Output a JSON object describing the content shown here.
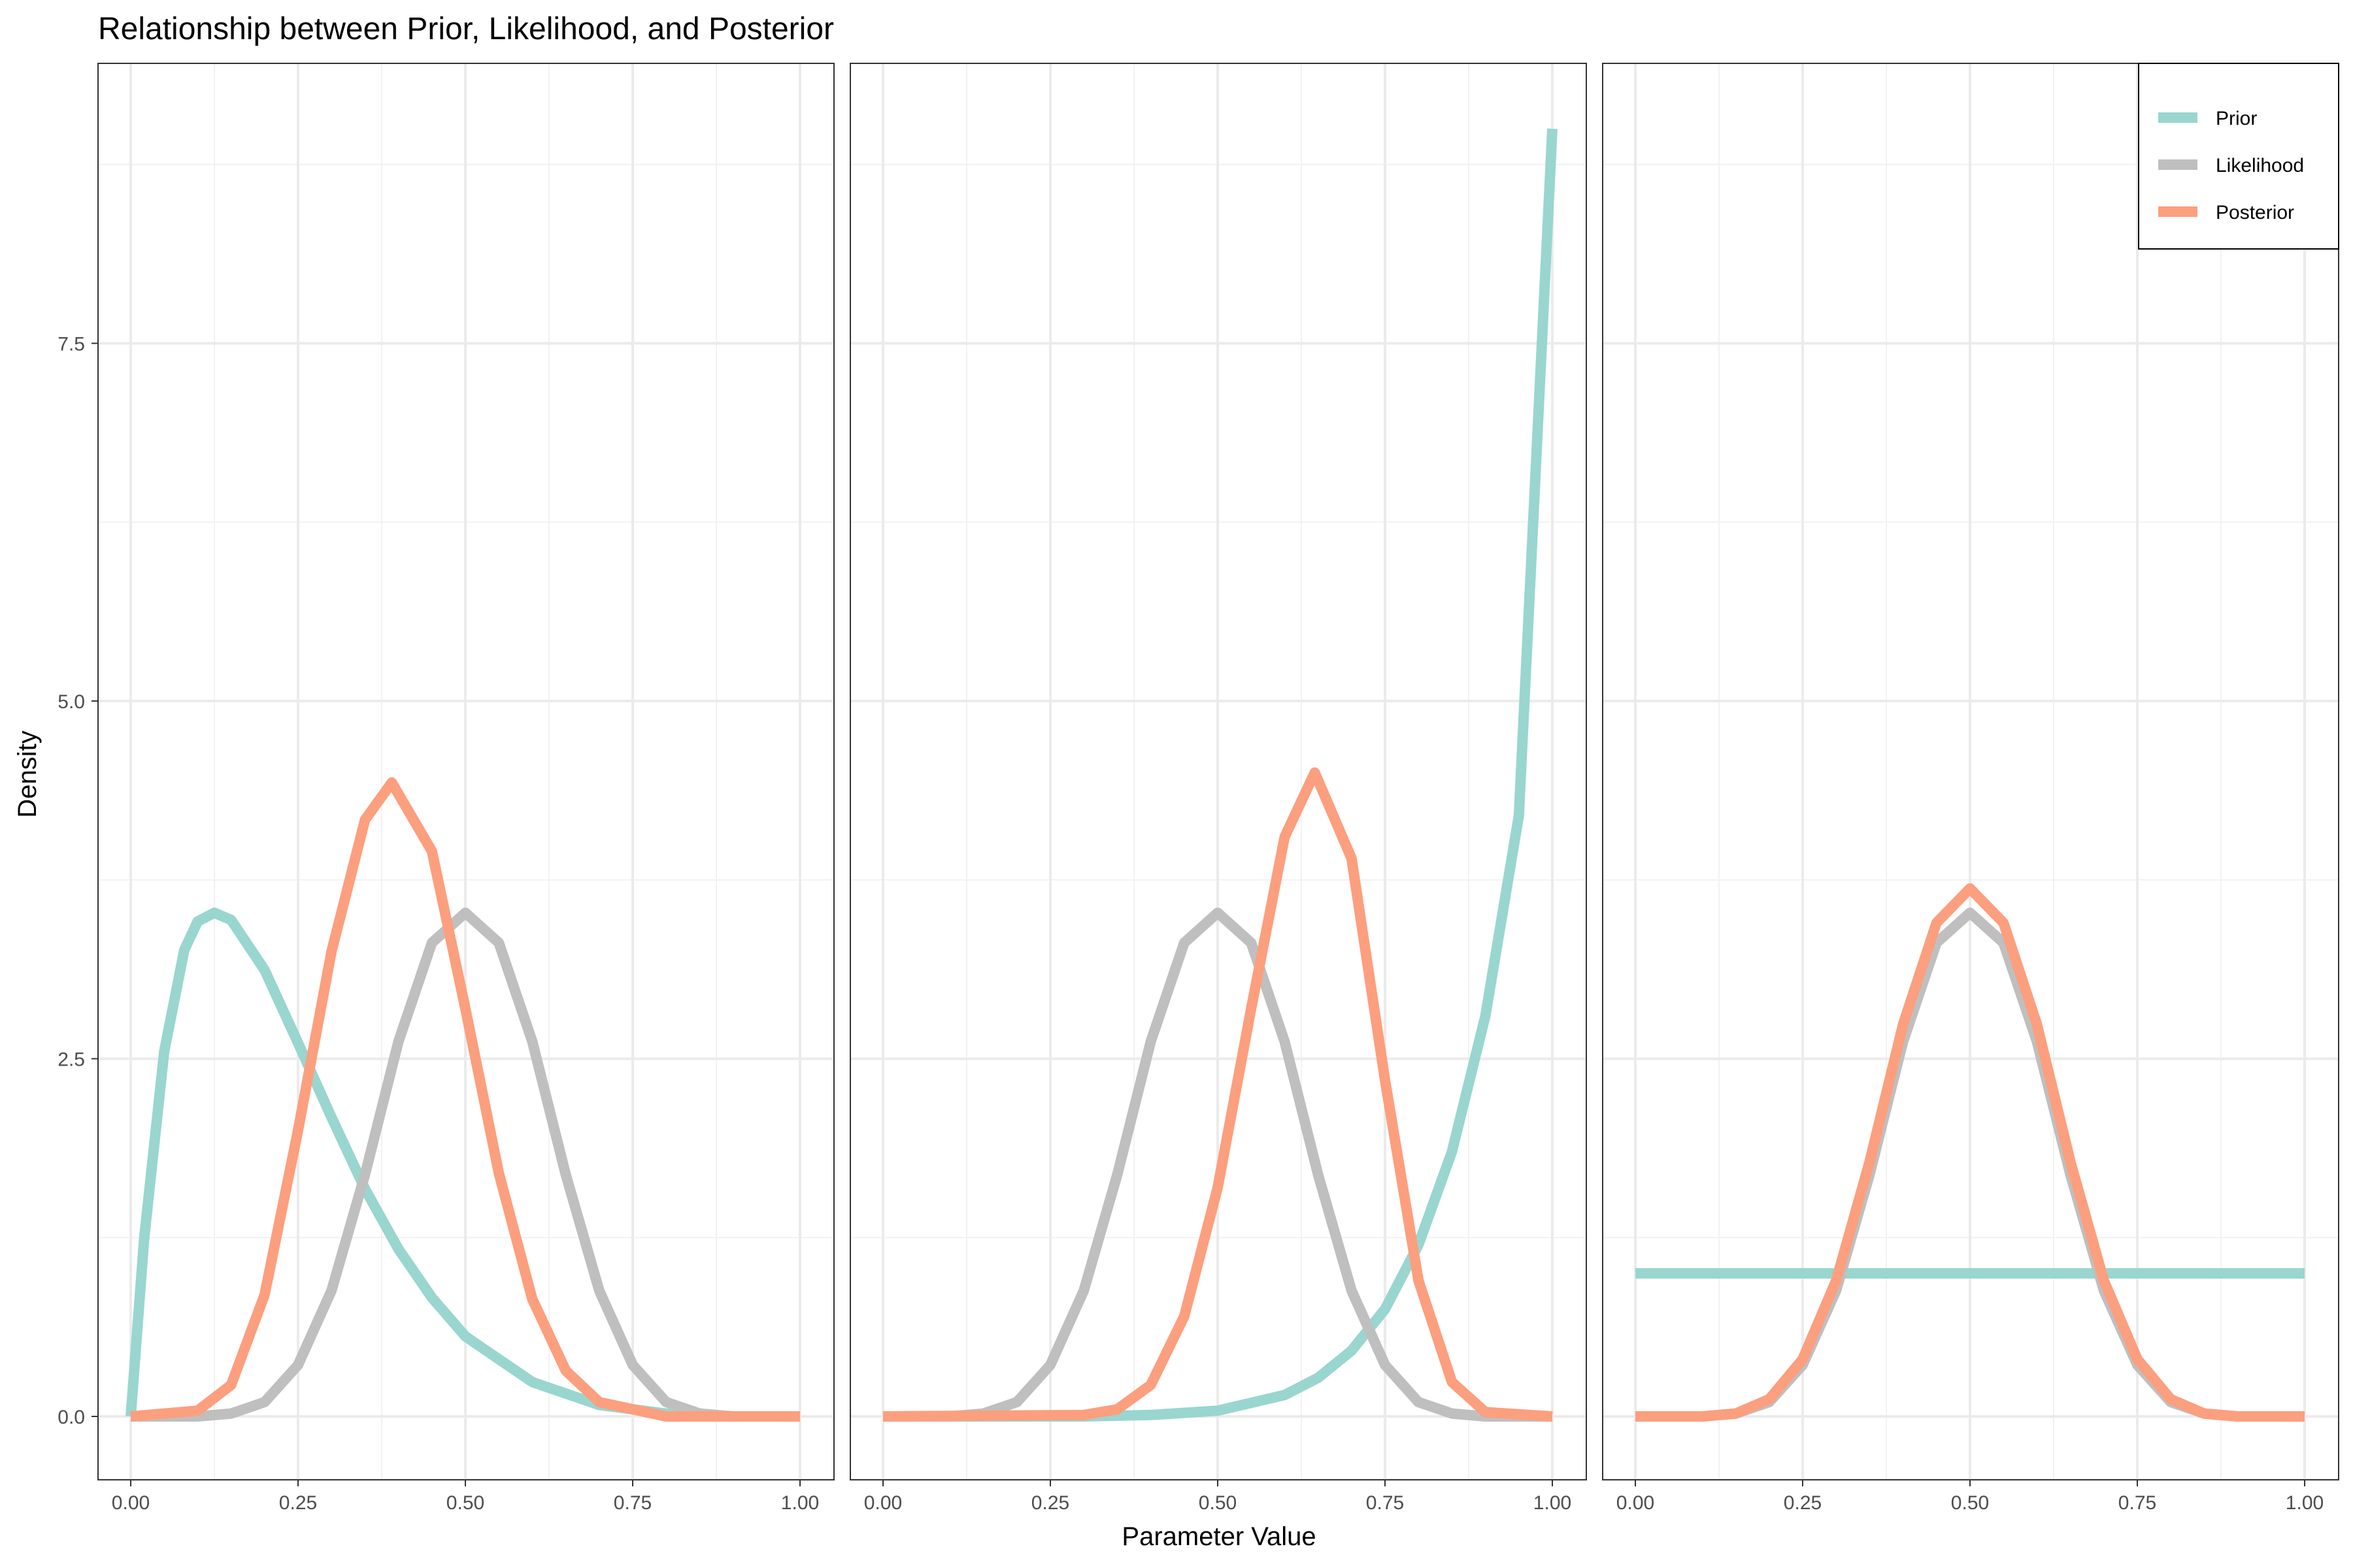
{
  "chart_data": {
    "type": "line",
    "title": "Relationship between Prior, Likelihood, and Posterior",
    "xlabel": "Parameter Value",
    "ylabel": "Density",
    "xlim": [
      0,
      1
    ],
    "ylim": [
      0,
      9
    ],
    "x_ticks": [
      "0.00",
      "0.25",
      "0.50",
      "0.75",
      "1.00"
    ],
    "y_ticks": [
      "0.0",
      "2.5",
      "5.0",
      "7.5"
    ],
    "grid": true,
    "legend_position": "top-right",
    "colors": {
      "Prior": "#99d6cf",
      "Likelihood": "#bfbfbf",
      "Posterior": "#fc9f7e"
    },
    "legend": [
      "Prior",
      "Likelihood",
      "Posterior"
    ],
    "panels": [
      {
        "series": [
          {
            "name": "Prior",
            "x": [
              0,
              0.02,
              0.05,
              0.08,
              0.1,
              0.125,
              0.15,
              0.2,
              0.25,
              0.3,
              0.35,
              0.4,
              0.45,
              0.5,
              0.6,
              0.7,
              0.8,
              0.9,
              1.0
            ],
            "y": [
              0,
              1.24,
              2.55,
              3.26,
              3.46,
              3.52,
              3.47,
              3.12,
              2.61,
              2.09,
              1.59,
              1.17,
              0.83,
              0.56,
              0.24,
              0.08,
              0.02,
              0.0,
              0
            ]
          },
          {
            "name": "Likelihood",
            "x": [
              0,
              0.1,
              0.15,
              0.2,
              0.25,
              0.3,
              0.35,
              0.4,
              0.45,
              0.5,
              0.55,
              0.6,
              0.65,
              0.7,
              0.75,
              0.8,
              0.85,
              0.9,
              1.0
            ],
            "y": [
              0,
              0.0,
              0.02,
              0.1,
              0.36,
              0.88,
              1.69,
              2.62,
              3.31,
              3.52,
              3.31,
              2.62,
              1.69,
              0.88,
              0.36,
              0.1,
              0.02,
              0.0,
              0
            ]
          },
          {
            "name": "Posterior",
            "x": [
              0,
              0.1,
              0.15,
              0.2,
              0.25,
              0.3,
              0.35,
              0.39,
              0.45,
              0.5,
              0.55,
              0.6,
              0.65,
              0.7,
              0.8,
              1.0
            ],
            "y": [
              0,
              0.04,
              0.22,
              0.85,
              2.0,
              3.25,
              4.17,
              4.43,
              3.95,
              2.85,
              1.7,
              0.82,
              0.32,
              0.1,
              0.0,
              0
            ]
          }
        ]
      },
      {
        "series": [
          {
            "name": "Prior",
            "x": [
              0,
              0.3,
              0.4,
              0.5,
              0.6,
              0.65,
              0.7,
              0.75,
              0.8,
              0.85,
              0.9,
              0.95,
              1.0
            ],
            "y": [
              0,
              0.0,
              0.01,
              0.04,
              0.15,
              0.27,
              0.46,
              0.75,
              1.2,
              1.85,
              2.8,
              4.2,
              9.0
            ]
          },
          {
            "name": "Likelihood",
            "x": [
              0,
              0.1,
              0.15,
              0.2,
              0.25,
              0.3,
              0.35,
              0.4,
              0.45,
              0.5,
              0.55,
              0.6,
              0.65,
              0.7,
              0.75,
              0.8,
              0.85,
              0.9,
              1.0
            ],
            "y": [
              0,
              0.0,
              0.02,
              0.1,
              0.36,
              0.88,
              1.69,
              2.62,
              3.31,
              3.52,
              3.31,
              2.62,
              1.69,
              0.88,
              0.36,
              0.1,
              0.02,
              0.0,
              0
            ]
          },
          {
            "name": "Posterior",
            "x": [
              0,
              0.3,
              0.35,
              0.4,
              0.45,
              0.5,
              0.55,
              0.6,
              0.645,
              0.7,
              0.75,
              0.8,
              0.85,
              0.9,
              1.0
            ],
            "y": [
              0,
              0.01,
              0.05,
              0.22,
              0.7,
              1.6,
              2.85,
              4.05,
              4.5,
              3.9,
              2.35,
              0.95,
              0.24,
              0.03,
              0
            ]
          }
        ]
      },
      {
        "series": [
          {
            "name": "Prior",
            "x": [
              0,
              1.0
            ],
            "y": [
              1,
              1
            ]
          },
          {
            "name": "Likelihood",
            "x": [
              0,
              0.1,
              0.15,
              0.2,
              0.25,
              0.3,
              0.35,
              0.4,
              0.45,
              0.5,
              0.55,
              0.6,
              0.65,
              0.7,
              0.75,
              0.8,
              0.85,
              0.9,
              1.0
            ],
            "y": [
              0,
              0.0,
              0.02,
              0.1,
              0.36,
              0.88,
              1.69,
              2.62,
              3.31,
              3.52,
              3.31,
              2.62,
              1.69,
              0.88,
              0.36,
              0.1,
              0.02,
              0.0,
              0
            ]
          },
          {
            "name": "Posterior",
            "x": [
              0,
              0.1,
              0.15,
              0.2,
              0.25,
              0.3,
              0.35,
              0.4,
              0.45,
              0.5,
              0.55,
              0.6,
              0.65,
              0.7,
              0.75,
              0.8,
              0.85,
              0.9,
              1.0
            ],
            "y": [
              0,
              0.0,
              0.02,
              0.12,
              0.4,
              0.95,
              1.78,
              2.74,
              3.45,
              3.69,
              3.45,
              2.74,
              1.78,
              0.95,
              0.4,
              0.12,
              0.02,
              0.0,
              0
            ]
          }
        ]
      }
    ]
  }
}
